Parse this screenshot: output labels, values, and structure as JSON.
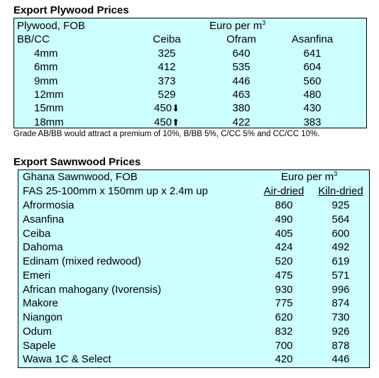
{
  "plywood": {
    "title": "Export Plywood Prices",
    "header_left_1": "Plywood, FOB",
    "header_left_2": "BB/CC",
    "unit": "Euro per m",
    "unit_sup": "3",
    "columns": [
      "Ceiba",
      "Ofram",
      "Asanfina"
    ],
    "rows": [
      {
        "size": "4mm",
        "ceiba": "325",
        "ofram": "640",
        "asanfina": "641",
        "arrow": ""
      },
      {
        "size": "6mm",
        "ceiba": "412",
        "ofram": "535",
        "asanfina": "604",
        "arrow": ""
      },
      {
        "size": "9mm",
        "ceiba": "373",
        "ofram": "446",
        "asanfina": "560",
        "arrow": ""
      },
      {
        "size": "12mm",
        "ceiba": "529",
        "ofram": "463",
        "asanfina": "480",
        "arrow": ""
      },
      {
        "size": "15mm",
        "ceiba": "450",
        "ofram": "380",
        "asanfina": "430",
        "arrow": "⬇"
      },
      {
        "size": "18mm",
        "ceiba": "450",
        "ofram": "422",
        "asanfina": "383",
        "arrow": "⬆"
      }
    ],
    "note": "Grade AB/BB would attract a premium of 10%, B/BB 5%, C/CC 5% and CC/CC 10%."
  },
  "sawnwood": {
    "title": "Export Sawnwood Prices",
    "header_left_1": "Ghana Sawnwood, FOB",
    "header_left_2": "FAS 25-100mm x 150mm up x 2.4m up",
    "unit": "Euro per m",
    "unit_sup": "3",
    "columns": [
      "Air-dried",
      "Kiln-dried"
    ],
    "rows": [
      {
        "species": "Afrormosia",
        "air": "860",
        "kiln": "925"
      },
      {
        "species": "Asanfina",
        "air": "490",
        "kiln": "564"
      },
      {
        "species": "Ceiba",
        "air": "405",
        "kiln": "600"
      },
      {
        "species": "Dahoma",
        "air": "424",
        "kiln": "492"
      },
      {
        "species": "Edinam (mixed redwood)",
        "air": "520",
        "kiln": "619"
      },
      {
        "species": "Emeri",
        "air": "475",
        "kiln": "571"
      },
      {
        "species": "African mahogany (Ivorensis)",
        "air": "930",
        "kiln": "996"
      },
      {
        "species": "Makore",
        "air": "775",
        "kiln": "874"
      },
      {
        "species": "Niangon",
        "air": "620",
        "kiln": "730"
      },
      {
        "species": "Odum",
        "air": "832",
        "kiln": "926"
      },
      {
        "species": "Sapele",
        "air": "700",
        "kiln": "878"
      },
      {
        "species": "Wawa 1C & Select",
        "air": "420",
        "kiln": "446"
      }
    ]
  }
}
